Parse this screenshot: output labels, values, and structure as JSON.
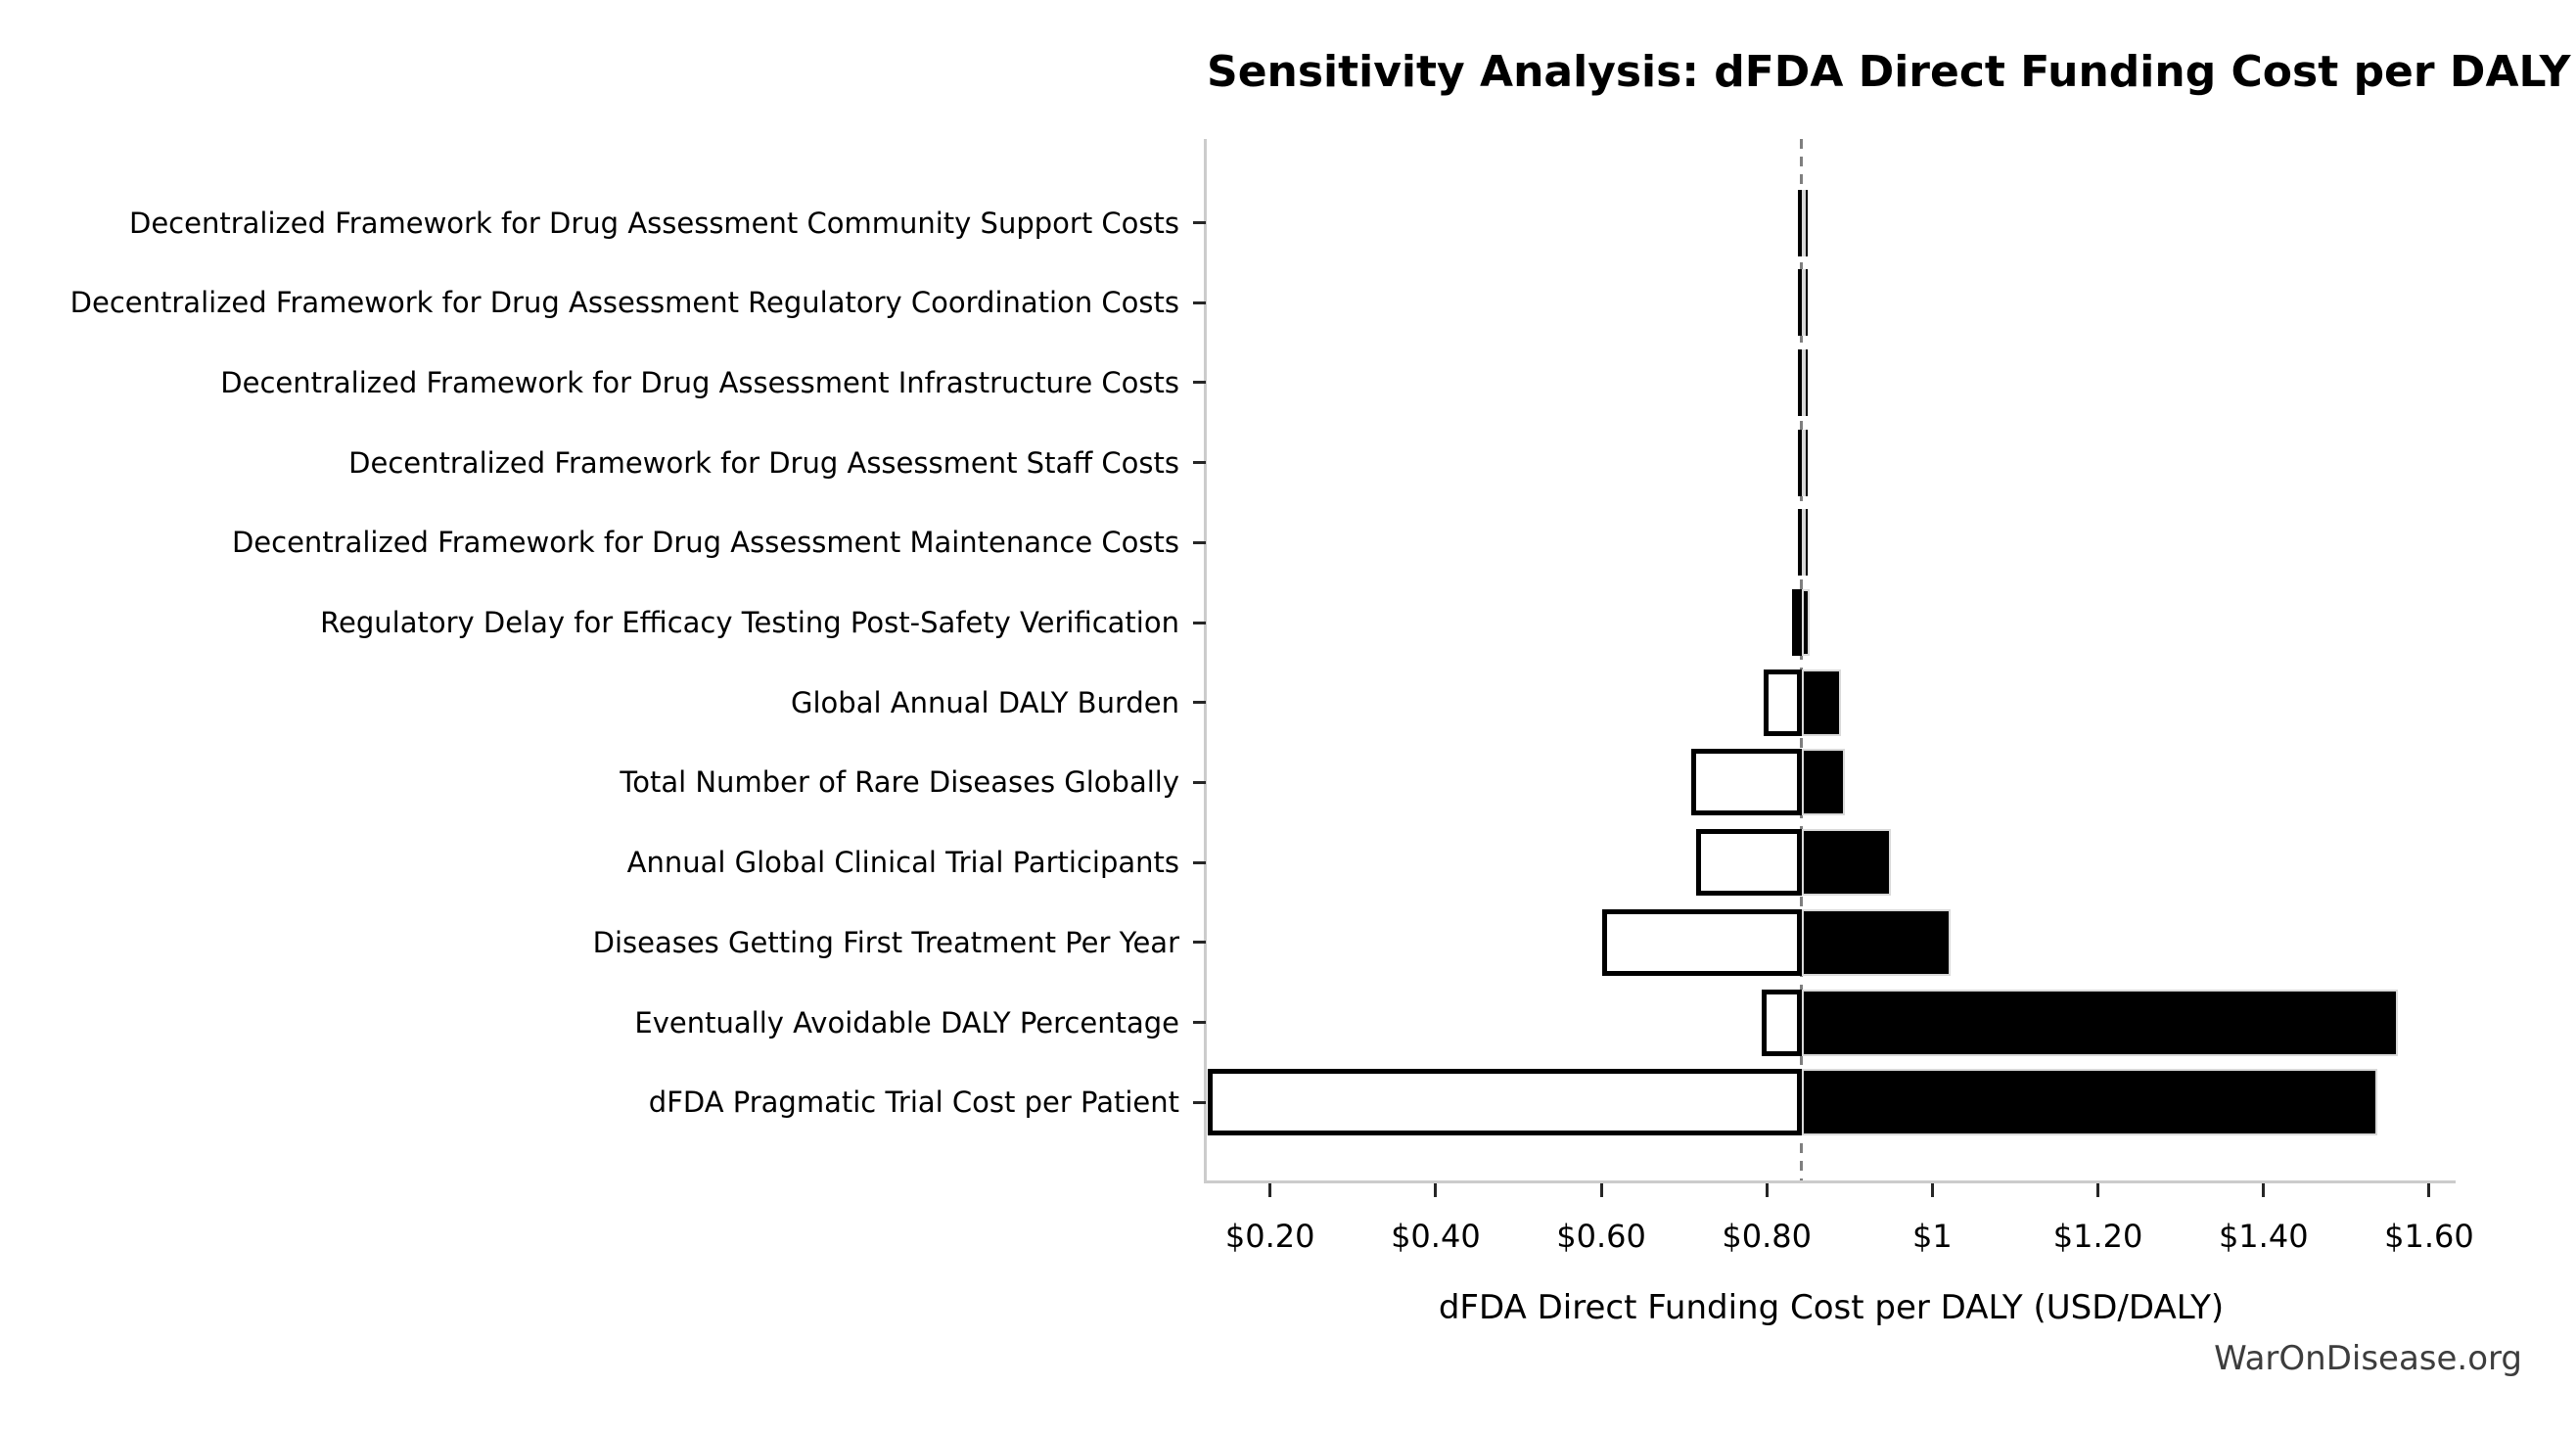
{
  "chart": {
    "title": "Sensitivity Analysis: dFDA Direct Funding Cost per DALY",
    "xlabel": "dFDA Direct Funding Cost per DALY (USD/DALY)",
    "watermark": "WarOnDisease.org"
  },
  "chart_data": {
    "type": "bar",
    "subtype": "tornado",
    "title": "Sensitivity Analysis: dFDA Direct Funding Cost per DALY",
    "xlabel": "dFDA Direct Funding Cost per DALY (USD/DALY)",
    "ylabel": "",
    "grid": false,
    "legend_position": "none",
    "xlim": [
      0.1235,
      1.632
    ],
    "baseline_value": 0.842,
    "x_ticks": [
      {
        "value": 0.2,
        "label": "$0.20"
      },
      {
        "value": 0.4,
        "label": "$0.40"
      },
      {
        "value": 0.6,
        "label": "$0.60"
      },
      {
        "value": 0.8,
        "label": "$0.80"
      },
      {
        "value": 1.0,
        "label": "$1"
      },
      {
        "value": 1.2,
        "label": "$1.20"
      },
      {
        "value": 1.4,
        "label": "$1.40"
      },
      {
        "value": 1.6,
        "label": "$1.60"
      }
    ],
    "rows": [
      {
        "label": "Decentralized Framework for Drug Assessment Community Support Costs",
        "low": 0.837,
        "high": 0.846
      },
      {
        "label": "Decentralized Framework for Drug Assessment Regulatory Coordination Costs",
        "low": 0.837,
        "high": 0.846
      },
      {
        "label": "Decentralized Framework for Drug Assessment Infrastructure Costs",
        "low": 0.837,
        "high": 0.846
      },
      {
        "label": "Decentralized Framework for Drug Assessment Staff Costs",
        "low": 0.837,
        "high": 0.846
      },
      {
        "label": "Decentralized Framework for Drug Assessment Maintenance Costs",
        "low": 0.837,
        "high": 0.846
      },
      {
        "label": "Regulatory Delay for Efficacy Testing Post-Safety Verification",
        "low": 0.831,
        "high": 0.852
      },
      {
        "label": "Global Annual DALY Burden",
        "low": 0.796,
        "high": 0.89
      },
      {
        "label": "Total Number of Rare Diseases Globally",
        "low": 0.709,
        "high": 0.894
      },
      {
        "label": "Annual Global Clinical Trial Participants",
        "low": 0.715,
        "high": 0.95
      },
      {
        "label": "Diseases Getting First Treatment Per Year",
        "low": 0.601,
        "high": 1.022
      },
      {
        "label": "Eventually Avoidable DALY Percentage",
        "low": 0.794,
        "high": 1.562
      },
      {
        "label": "dFDA Pragmatic Trial Cost per Patient",
        "low": 0.125,
        "high": 1.537
      }
    ]
  },
  "colors": {
    "background": "#ffffff",
    "bar_high_fill": "#000000",
    "bar_high_edge": "#d9d9d9",
    "bar_low_fill": "#ffffff",
    "bar_low_edge": "#000000",
    "baseline_dash": "#7f7f7f",
    "spine": "#cccccc",
    "tick_mark": "#262626",
    "text": "#000000",
    "watermark": "#3d3d3d"
  }
}
